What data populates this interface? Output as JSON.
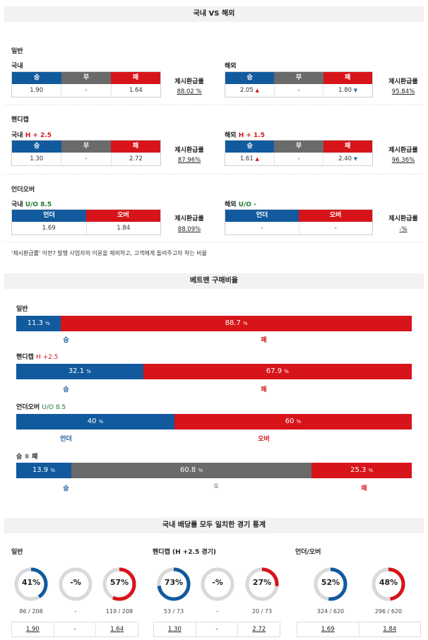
{
  "sections": {
    "odds_title": "국내 VS 해외",
    "betman_title": "베트맨 구매비율",
    "stats_title": "국내 배당률 모두 일치한 경기 통계"
  },
  "odds": {
    "general_label": "일반",
    "handicap_label": "핸디캡",
    "ou_label": "언더오버",
    "domestic": "국내",
    "foreign": "해외",
    "return_label": "제시환급률",
    "h_spec": "H + 2.5",
    "h_spec_foreign": "H + 1.5",
    "ou_spec": "U/O 8.5",
    "ou_spec_foreign": "U/O -",
    "hdr_win": "승",
    "hdr_draw": "무",
    "hdr_lose": "패",
    "hdr_under": "언더",
    "hdr_over": "오버",
    "general_dom": {
      "win": "1.90",
      "draw": "-",
      "lose": "1.64",
      "ret": "88.02 %"
    },
    "general_for": {
      "win": "2.05",
      "draw": "-",
      "lose": "1.80",
      "ret": "95.84%"
    },
    "handicap_dom": {
      "win": "1.30",
      "draw": "-",
      "lose": "2.72",
      "ret": "87.96%"
    },
    "handicap_for": {
      "win": "1.61",
      "draw": "-",
      "lose": "2.40",
      "ret": "96.36%"
    },
    "ou_dom": {
      "under": "1.69",
      "over": "1.84",
      "ret": "88.09%"
    },
    "ou_for": {
      "under": "-",
      "over": "-",
      "ret": "-%"
    },
    "note": "'제시환급률' 이란? 발행 사업자의 이윤을 제외하고, 고객에게 돌려주고자 하는 비율",
    "arrow_up": "▲",
    "arrow_down": "▼"
  },
  "betman": {
    "general": {
      "label": "일반",
      "win_pct": "11.3",
      "lose_pct": "88.7",
      "win_cap": "승",
      "lose_cap": "패"
    },
    "handicap": {
      "label": "핸디캡",
      "spec": "H +2.5",
      "win_pct": "32.1",
      "lose_pct": "67.9",
      "win_cap": "승",
      "lose_cap": "패"
    },
    "ou": {
      "label": "언더오버",
      "spec": "U/O 8.5",
      "under_pct": "40",
      "over_pct": "60",
      "under_cap": "언더",
      "over_cap": "오버"
    },
    "wdl": {
      "label": "승 ① 패",
      "win_pct": "13.9",
      "draw_pct": "60.8",
      "lose_pct": "25.3",
      "win_cap": "승",
      "draw_cap": "①",
      "lose_cap": "패"
    },
    "pct_unit": "%"
  },
  "stats": {
    "general": {
      "label": "일반",
      "win": "41%",
      "draw": "-%",
      "lose": "57%",
      "win_cnt": "86 / 208",
      "draw_cnt": "-",
      "lose_cnt": "119 / 208",
      "o_win": "1.90",
      "o_draw": "-",
      "o_lose": "1.64"
    },
    "handicap": {
      "label": "핸디캡 (H +2.5 경기)",
      "win": "73%",
      "draw": "-%",
      "lose": "27%",
      "win_cnt": "53 / 73",
      "draw_cnt": "-",
      "lose_cnt": "20 / 73",
      "o_win": "1.30",
      "o_draw": "-",
      "o_lose": "2.72"
    },
    "ou": {
      "label": "언더/오버",
      "under": "52%",
      "over": "48%",
      "under_cnt": "324 / 620",
      "over_cnt": "296 / 620",
      "o_under": "1.69",
      "o_over": "1.84"
    }
  },
  "chart_data": [
    {
      "type": "bar",
      "title": "일반",
      "categories": [
        "승",
        "패"
      ],
      "values": [
        11.3,
        88.7
      ]
    },
    {
      "type": "bar",
      "title": "핸디캡 H +2.5",
      "categories": [
        "승",
        "패"
      ],
      "values": [
        32.1,
        67.9
      ]
    },
    {
      "type": "bar",
      "title": "언더오버 U/O 8.5",
      "categories": [
        "언더",
        "오버"
      ],
      "values": [
        40,
        60
      ]
    },
    {
      "type": "bar",
      "title": "승 ① 패",
      "categories": [
        "승",
        "①",
        "패"
      ],
      "values": [
        13.9,
        60.8,
        25.3
      ]
    },
    {
      "type": "pie",
      "title": "일반",
      "categories": [
        "승",
        "무",
        "패"
      ],
      "values": [
        41,
        0,
        57
      ]
    },
    {
      "type": "pie",
      "title": "핸디캡 (H +2.5 경기)",
      "categories": [
        "승",
        "무",
        "패"
      ],
      "values": [
        73,
        0,
        27
      ]
    },
    {
      "type": "pie",
      "title": "언더/오버",
      "categories": [
        "언더",
        "오버"
      ],
      "values": [
        52,
        48
      ]
    }
  ],
  "colors": {
    "blue": "#115a9e",
    "red": "#d7141a",
    "grey": "#6a6a6a",
    "ring": "#d9d9d9"
  }
}
